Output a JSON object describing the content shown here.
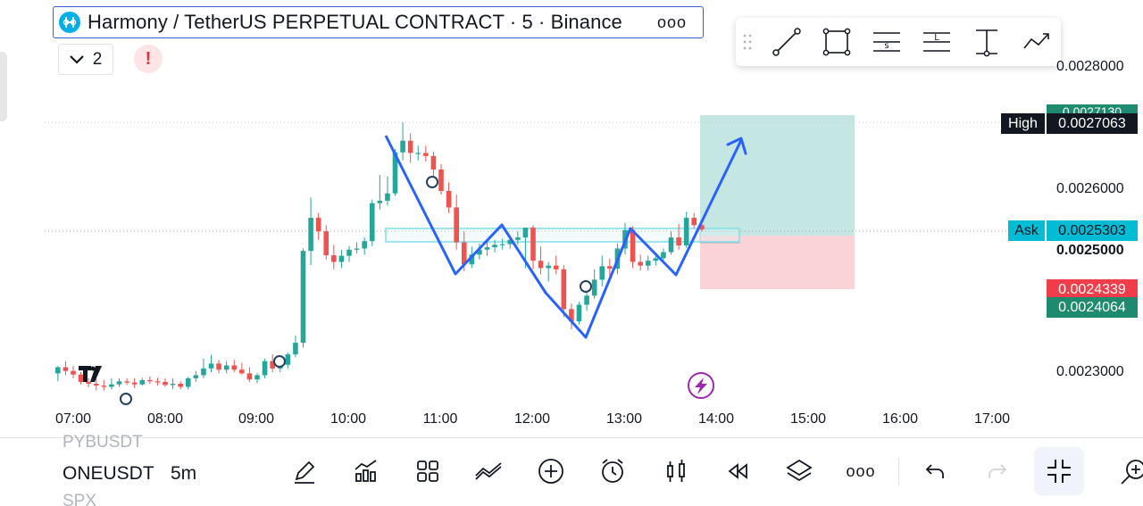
{
  "header": {
    "title": "Harmony / TetherUS PERPETUAL CONTRACT · 5 · Binance",
    "more": "ooo",
    "indicator_count": "2",
    "alert": "!"
  },
  "icons": {
    "coin": "harmony-coin-icon",
    "draw_tools": [
      "trend-line-icon",
      "rectangle-icon",
      "fib-s-icon",
      "fib-l-icon",
      "long-position-icon",
      "path-icon"
    ],
    "bottom_tools": [
      "pencil-icon",
      "indicators-icon",
      "layout-icon",
      "chart-type-icon",
      "add-icon",
      "alarm-icon",
      "candles-icon",
      "replay-icon",
      "layers-icon",
      "more-icon",
      "undo-icon",
      "redo-icon",
      "fullscreen-exit-icon",
      "zoom-icon"
    ]
  },
  "price_axis": {
    "labels": [
      "0.0028000",
      "0.0026000",
      "0.0025000",
      "0.0023000"
    ],
    "high_label": "High",
    "high_value": "0.0027063",
    "behind_high": "0.0027130",
    "ask_label": "Ask",
    "ask_value": "0.0025303",
    "stop_value": "0.0024339",
    "target_value": "0.0024064"
  },
  "time_axis": [
    "07:00",
    "08:00",
    "09:00",
    "10:00",
    "11:00",
    "12:00",
    "13:00",
    "14:00",
    "15:00",
    "16:00",
    "17:00"
  ],
  "bottom": {
    "symbol_prev": "PYBUSDT",
    "symbol_current": "ONEUSDT",
    "symbol_next": "SPX",
    "interval": "5m",
    "more": "ooo"
  },
  "colors": {
    "up": "#26a69a",
    "down": "#ef5350",
    "pattern": "#2962ff",
    "ask": "#00bcd4",
    "target_zone": "#b2dfdb",
    "stop_zone": "#f8c8cc",
    "lightning": "#9c27b0"
  },
  "chart_data": {
    "type": "candlestick",
    "x": [
      "06:50",
      "06:55",
      "07:00",
      "07:05",
      "07:10",
      "07:15",
      "07:20",
      "07:25",
      "07:30",
      "07:35",
      "07:40",
      "07:45",
      "07:50",
      "07:55",
      "08:00",
      "08:05",
      "08:10",
      "08:15",
      "08:20",
      "08:25",
      "08:30",
      "08:35",
      "08:40",
      "08:45",
      "08:50",
      "08:55",
      "09:00",
      "09:05",
      "09:10",
      "09:15",
      "09:20",
      "09:25",
      "09:30",
      "09:35",
      "09:40",
      "09:45",
      "09:50",
      "09:55",
      "10:00",
      "10:05",
      "10:10",
      "10:15",
      "10:20",
      "10:25",
      "10:30",
      "10:35",
      "10:40",
      "10:45",
      "10:50",
      "10:55",
      "11:00",
      "11:05",
      "11:10",
      "11:15",
      "11:20",
      "11:25",
      "11:30",
      "11:35",
      "11:40",
      "11:45",
      "11:50",
      "11:55",
      "12:00",
      "12:05",
      "12:10",
      "12:15",
      "12:20",
      "12:25",
      "12:30",
      "12:35",
      "12:40",
      "12:45",
      "12:50",
      "12:55",
      "13:00",
      "13:05",
      "13:10",
      "13:15",
      "13:20",
      "13:25",
      "13:30",
      "13:35",
      "13:40",
      "13:45",
      "13:50"
    ],
    "open": [
      0.002298,
      0.002308,
      0.002302,
      0.002296,
      0.002284,
      0.002281,
      0.002278,
      0.002276,
      0.00228,
      0.002285,
      0.002283,
      0.00228,
      0.002287,
      0.002285,
      0.002284,
      0.002279,
      0.002281,
      0.002276,
      0.00229,
      0.002295,
      0.002306,
      0.002314,
      0.002304,
      0.002311,
      0.002304,
      0.002298,
      0.002288,
      0.002295,
      0.002318,
      0.002306,
      0.002312,
      0.002329,
      0.002348,
      0.002498,
      0.002552,
      0.00253,
      0.002491,
      0.00248,
      0.00249,
      0.0025,
      0.002502,
      0.002514,
      0.002576,
      0.00258,
      0.002592,
      0.002659,
      0.002678,
      0.002658,
      0.002658,
      0.002653,
      0.002631,
      0.002596,
      0.002569,
      0.002512,
      0.002476,
      0.002492,
      0.0025,
      0.002504,
      0.002508,
      0.002509,
      0.002516,
      0.00252,
      0.002536,
      0.002482,
      0.00247,
      0.002474,
      0.002468,
      0.002403,
      0.002383,
      0.00241,
      0.002425,
      0.002451,
      0.002473,
      0.002469,
      0.002502,
      0.002532,
      0.00248,
      0.002474,
      0.002482,
      0.002486,
      0.002496,
      0.00252,
      0.002507,
      0.002552,
      0.00254
    ],
    "high": [
      0.00231,
      0.002318,
      0.00231,
      0.0023,
      0.00229,
      0.00229,
      0.002287,
      0.00229,
      0.00229,
      0.00229,
      0.00229,
      0.002291,
      0.002293,
      0.002291,
      0.00229,
      0.00229,
      0.002285,
      0.002292,
      0.002302,
      0.002322,
      0.002328,
      0.00232,
      0.002318,
      0.00232,
      0.002315,
      0.002308,
      0.002298,
      0.002322,
      0.002329,
      0.002314,
      0.002332,
      0.00236,
      0.002502,
      0.002585,
      0.00256,
      0.00254,
      0.002508,
      0.0025,
      0.002506,
      0.002512,
      0.00252,
      0.002582,
      0.002622,
      0.00262,
      0.002664,
      0.002708,
      0.00269,
      0.00267,
      0.00267,
      0.00266,
      0.00264,
      0.00261,
      0.00259,
      0.00253,
      0.002505,
      0.00251,
      0.002512,
      0.002516,
      0.002518,
      0.002519,
      0.00253,
      0.002534,
      0.00254,
      0.002505,
      0.00248,
      0.00249,
      0.002475,
      0.002412,
      0.002415,
      0.002432,
      0.002468,
      0.00249,
      0.002485,
      0.00251,
      0.002544,
      0.002538,
      0.002492,
      0.00249,
      0.002492,
      0.002502,
      0.00253,
      0.002542,
      0.002562,
      0.00256,
      0.002545
    ],
    "low": [
      0.002285,
      0.002295,
      0.00229,
      0.00228,
      0.002275,
      0.00227,
      0.00227,
      0.002272,
      0.002276,
      0.002279,
      0.002274,
      0.002278,
      0.002281,
      0.002278,
      0.002276,
      0.002272,
      0.002272,
      0.002272,
      0.002284,
      0.00229,
      0.0023,
      0.002298,
      0.002298,
      0.0023,
      0.002296,
      0.002284,
      0.002282,
      0.00229,
      0.0023,
      0.0023,
      0.002306,
      0.002324,
      0.00234,
      0.002475,
      0.002516,
      0.002484,
      0.002468,
      0.00247,
      0.00248,
      0.002494,
      0.002492,
      0.002506,
      0.002566,
      0.002572,
      0.002588,
      0.002646,
      0.002642,
      0.002646,
      0.002644,
      0.00262,
      0.00259,
      0.00256,
      0.0025,
      0.002465,
      0.00247,
      0.002484,
      0.00249,
      0.002496,
      0.0025,
      0.002502,
      0.002508,
      0.00247,
      0.002468,
      0.00246,
      0.002448,
      0.00246,
      0.00239,
      0.00237,
      0.002378,
      0.0024,
      0.00242,
      0.00244,
      0.002455,
      0.00246,
      0.002492,
      0.00247,
      0.002466,
      0.002466,
      0.002474,
      0.00248,
      0.002492,
      0.0025,
      0.002503,
      0.002535,
      0.00253
    ],
    "close": [
      0.002308,
      0.002302,
      0.002296,
      0.002284,
      0.002281,
      0.002278,
      0.002276,
      0.00228,
      0.002285,
      0.002283,
      0.00228,
      0.002287,
      0.002285,
      0.002284,
      0.002279,
      0.002281,
      0.002276,
      0.00229,
      0.002295,
      0.002306,
      0.002314,
      0.002304,
      0.002311,
      0.002304,
      0.002298,
      0.002288,
      0.002295,
      0.002318,
      0.002306,
      0.002312,
      0.002329,
      0.002348,
      0.002498,
      0.002552,
      0.00253,
      0.002491,
      0.00248,
      0.00249,
      0.0025,
      0.002502,
      0.002514,
      0.002576,
      0.00258,
      0.002592,
      0.002659,
      0.002678,
      0.002658,
      0.002658,
      0.002653,
      0.002631,
      0.002596,
      0.002569,
      0.002512,
      0.002476,
      0.002492,
      0.0025,
      0.002504,
      0.002508,
      0.002509,
      0.002516,
      0.00252,
      0.002536,
      0.002482,
      0.00247,
      0.002474,
      0.002468,
      0.002403,
      0.002383,
      0.00241,
      0.002425,
      0.002451,
      0.002473,
      0.002469,
      0.002502,
      0.002532,
      0.00248,
      0.002474,
      0.002482,
      0.002486,
      0.002496,
      0.00252,
      0.002507,
      0.002552,
      0.00254,
      0.002533
    ],
    "ylim": [
      0.00223,
      0.00281
    ],
    "xlim_time": [
      "06:45",
      "17:15"
    ],
    "grid": false
  }
}
